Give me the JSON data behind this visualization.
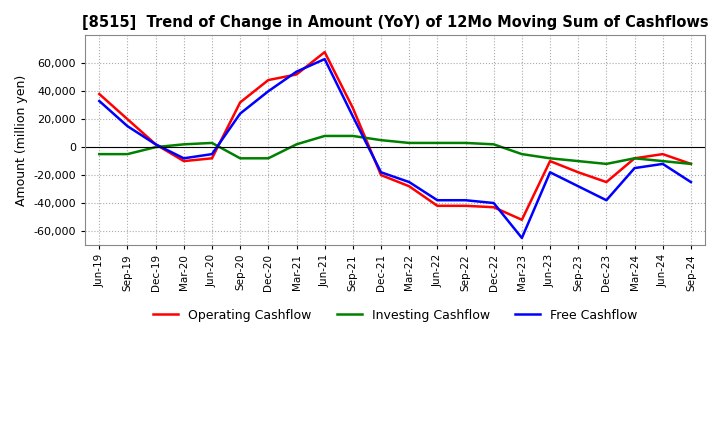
{
  "title": "[8515]  Trend of Change in Amount (YoY) of 12Mo Moving Sum of Cashflows",
  "ylabel": "Amount (million yen)",
  "ylim": [
    -70000,
    80000
  ],
  "yticks": [
    -60000,
    -40000,
    -20000,
    0,
    20000,
    40000,
    60000
  ],
  "x_labels": [
    "Jun-19",
    "Sep-19",
    "Dec-19",
    "Mar-20",
    "Jun-20",
    "Sep-20",
    "Dec-20",
    "Mar-21",
    "Jun-21",
    "Sep-21",
    "Dec-21",
    "Mar-22",
    "Jun-22",
    "Sep-22",
    "Dec-22",
    "Mar-23",
    "Jun-23",
    "Sep-23",
    "Dec-23",
    "Mar-24",
    "Jun-24",
    "Sep-24"
  ],
  "operating": [
    38000,
    20000,
    2000,
    -10000,
    -8000,
    32000,
    48000,
    52000,
    68000,
    28000,
    -20000,
    -28000,
    -42000,
    -42000,
    -43000,
    -52000,
    -10000,
    -18000,
    -25000,
    -8000,
    -5000,
    -12000
  ],
  "investing": [
    -5000,
    -5000,
    0,
    2000,
    3000,
    -8000,
    -8000,
    2000,
    8000,
    8000,
    5000,
    3000,
    3000,
    3000,
    2000,
    -5000,
    -8000,
    -10000,
    -12000,
    -8000,
    -10000,
    -12000
  ],
  "free": [
    33000,
    15000,
    2000,
    -8000,
    -5000,
    24000,
    40000,
    54000,
    63000,
    22000,
    -18000,
    -25000,
    -38000,
    -38000,
    -40000,
    -65000,
    -18000,
    -28000,
    -38000,
    -15000,
    -12000,
    -25000
  ],
  "operating_color": "#ff0000",
  "investing_color": "#008000",
  "free_color": "#0000ff",
  "background_color": "#ffffff",
  "grid_color": "#aaaaaa"
}
